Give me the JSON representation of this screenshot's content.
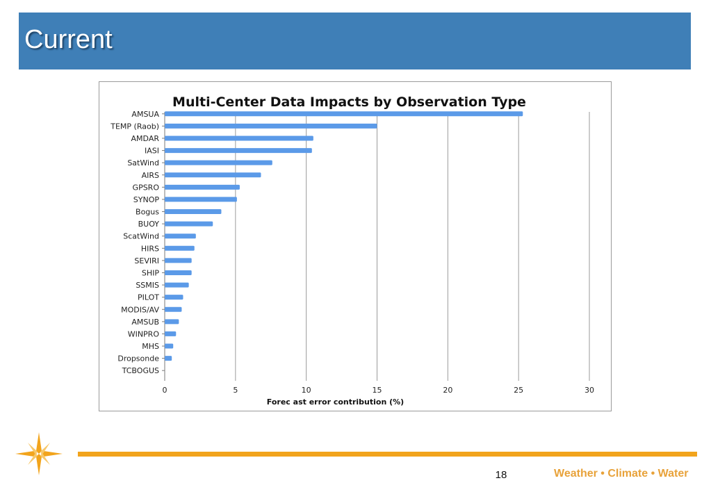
{
  "slide": {
    "title": "Current",
    "page_number": "18",
    "slogan": "Weather • Climate • Water",
    "accent_color": "#3f7fb7",
    "footer_color": "#f2a41c"
  },
  "logo": {
    "icon": "compass-star-icon"
  },
  "chart_data": {
    "type": "bar",
    "orientation": "horizontal",
    "title": "Multi-Center Data Impacts by Observation Type",
    "xlabel": "Forec ast error contribution (%)",
    "ylabel": "",
    "xlim": [
      0,
      30
    ],
    "xticks": [
      0,
      5,
      10,
      15,
      20,
      25,
      30
    ],
    "grid": true,
    "legend": "none",
    "bar_color": "#5b9ae8",
    "categories": [
      "AMSUA",
      "TEMP (Raob)",
      "AMDAR",
      "IASI",
      "SatWind",
      "AIRS",
      "GPSRO",
      "SYNOP",
      "Bogus",
      "BUOY",
      "ScatWind",
      "HIRS",
      "SEVIRI",
      "SHIP",
      "SSMIS",
      "PILOT",
      "MODIS/AV",
      "AMSUB",
      "WINPRO",
      "MHS",
      "Dropsonde",
      "TCBOGUS"
    ],
    "values": [
      25.3,
      15.0,
      10.5,
      10.4,
      7.6,
      6.8,
      5.3,
      5.1,
      4.0,
      3.4,
      2.2,
      2.1,
      1.9,
      1.9,
      1.7,
      1.3,
      1.2,
      1.0,
      0.8,
      0.6,
      0.5,
      0.0
    ]
  }
}
